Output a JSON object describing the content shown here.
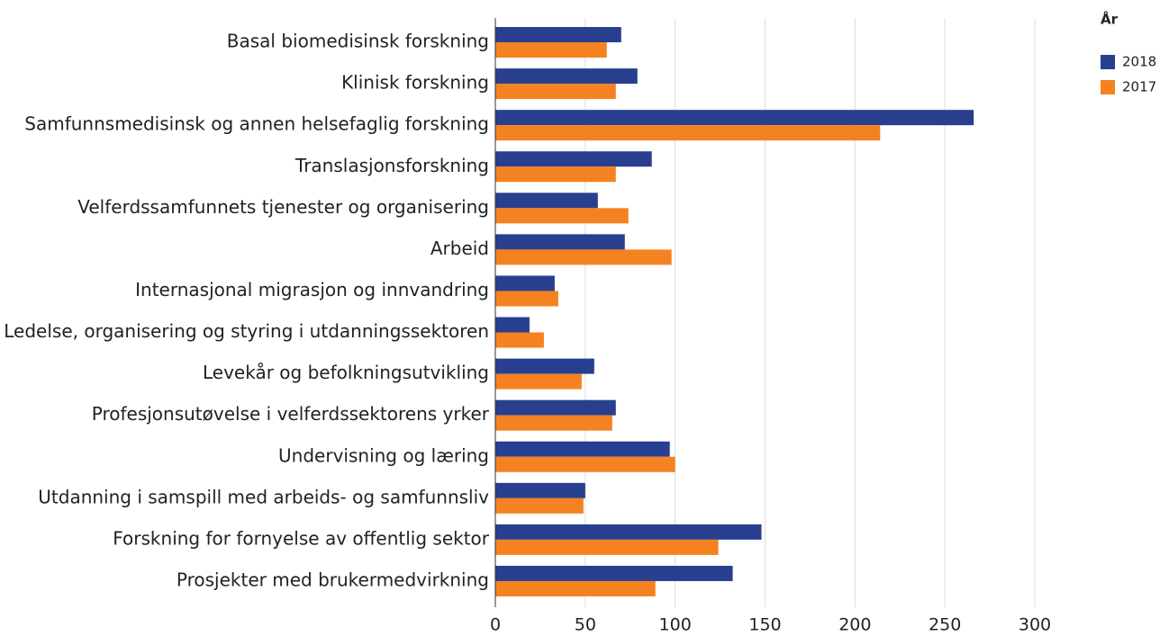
{
  "chart_data": {
    "type": "hbar",
    "categories": [
      "Basal biomedisinsk forskning",
      "Klinisk forskning",
      "Samfunnsmedisinsk og annen helsefaglig forskning",
      "Translasjonsforskning",
      "Velferdssamfunnets tjenester og organisering",
      "Arbeid",
      "Internasjonal migrasjon og innvandring",
      "Ledelse, organisering og styring i utdanningssektoren",
      "Levekår og befolkningsutvikling",
      "Profesjonsutøvelse i velferdssektorens yrker",
      "Undervisning og læring",
      "Utdanning i samspill med arbeids- og samfunnsliv",
      "Forskning for fornyelse av offentlig sektor",
      "Prosjekter med brukermedvirkning"
    ],
    "series": [
      {
        "name": "2018",
        "color": "#283f8f",
        "values": [
          70,
          79,
          266,
          87,
          57,
          72,
          33,
          19,
          55,
          67,
          97,
          50,
          148,
          132
        ]
      },
      {
        "name": "2017",
        "color": "#f58220",
        "values": [
          62,
          67,
          214,
          67,
          74,
          98,
          35,
          27,
          48,
          65,
          100,
          49,
          124,
          89
        ]
      }
    ],
    "legend_title": "År",
    "legend": "top-right",
    "xlim": [
      0,
      300
    ],
    "xticks": [
      0,
      50,
      100,
      150,
      200,
      250,
      300
    ],
    "grid": true
  }
}
